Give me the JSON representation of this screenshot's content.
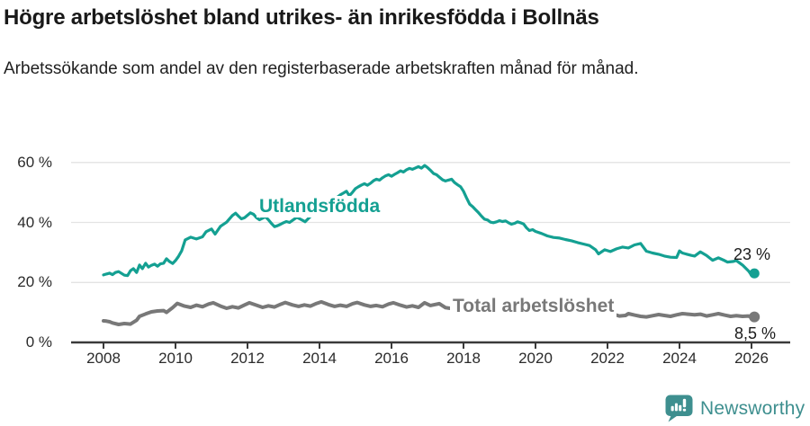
{
  "header": {
    "title": "Högre arbetslöshet bland utrikes- än inrikesfödda i Bollnäs",
    "subtitle": "Arbetssökande som andel av den registerbaserade arbetskraften månad för månad."
  },
  "footer": {
    "brand": "Newsworthy",
    "brand_color": "#3e8f8f",
    "logo_icon": "newsworthy-speech-bubble-bar-chart-icon"
  },
  "chart_data": {
    "type": "line",
    "title": "Högre arbetslöshet bland utrikes- än inrikesfödda i Bollnäs",
    "subtitle": "Arbetssökande som andel av den registerbaserade arbetskraften månad för månad.",
    "xlabel": "",
    "ylabel": "",
    "grid": "horizontal",
    "legend_position": "inline-labels",
    "x_axis": {
      "ticks": [
        2008,
        2010,
        2012,
        2014,
        2016,
        2018,
        2020,
        2022,
        2024,
        2026
      ],
      "range": [
        2007.1,
        2027.2
      ]
    },
    "y_axis": {
      "tick_labels": [
        "0 %",
        "20 %",
        "40 %",
        "60 %"
      ],
      "tick_values": [
        0,
        20,
        40,
        60
      ],
      "range": [
        0,
        66
      ],
      "unit": "%"
    },
    "axis_color": "#3a3a3a",
    "gridline_color": "#e3e3e3",
    "series": [
      {
        "name": "Utlandsfödda",
        "color": "#14a092",
        "end_label": "23 %",
        "end_value": 23,
        "points": [
          [
            2008.0,
            22.5
          ],
          [
            2008.08,
            22.8
          ],
          [
            2008.17,
            23.1
          ],
          [
            2008.25,
            22.6
          ],
          [
            2008.33,
            23.3
          ],
          [
            2008.42,
            23.6
          ],
          [
            2008.5,
            23.0
          ],
          [
            2008.58,
            22.4
          ],
          [
            2008.67,
            22.3
          ],
          [
            2008.75,
            23.9
          ],
          [
            2008.83,
            24.6
          ],
          [
            2008.92,
            23.3
          ],
          [
            2009.0,
            25.8
          ],
          [
            2009.08,
            24.6
          ],
          [
            2009.17,
            26.4
          ],
          [
            2009.25,
            25.1
          ],
          [
            2009.33,
            25.7
          ],
          [
            2009.42,
            26.1
          ],
          [
            2009.5,
            25.4
          ],
          [
            2009.58,
            26.2
          ],
          [
            2009.67,
            26.4
          ],
          [
            2009.75,
            27.9
          ],
          [
            2009.83,
            27.0
          ],
          [
            2009.92,
            26.3
          ],
          [
            2010.0,
            27.3
          ],
          [
            2010.08,
            28.6
          ],
          [
            2010.17,
            30.5
          ],
          [
            2010.27,
            34.2
          ],
          [
            2010.42,
            35.1
          ],
          [
            2010.58,
            34.5
          ],
          [
            2010.75,
            35.2
          ],
          [
            2010.85,
            36.9
          ],
          [
            2011.0,
            37.8
          ],
          [
            2011.1,
            36.1
          ],
          [
            2011.25,
            38.7
          ],
          [
            2011.42,
            40.1
          ],
          [
            2011.58,
            42.3
          ],
          [
            2011.67,
            43.1
          ],
          [
            2011.75,
            42.1
          ],
          [
            2011.83,
            41.2
          ],
          [
            2011.92,
            41.6
          ],
          [
            2012.0,
            42.4
          ],
          [
            2012.08,
            43.2
          ],
          [
            2012.17,
            42.7
          ],
          [
            2012.25,
            41.6
          ],
          [
            2012.33,
            40.9
          ],
          [
            2012.42,
            41.4
          ],
          [
            2012.5,
            41.9
          ],
          [
            2012.58,
            40.9
          ],
          [
            2012.67,
            39.6
          ],
          [
            2012.75,
            38.6
          ],
          [
            2012.83,
            38.9
          ],
          [
            2012.92,
            39.4
          ],
          [
            2013.0,
            39.9
          ],
          [
            2013.08,
            40.3
          ],
          [
            2013.17,
            40.0
          ],
          [
            2013.25,
            40.7
          ],
          [
            2013.37,
            41.7
          ],
          [
            2013.5,
            40.9
          ],
          [
            2013.6,
            40.2
          ],
          [
            2013.75,
            42.0
          ],
          [
            2013.92,
            43.6
          ],
          [
            2014.08,
            45.1
          ],
          [
            2014.25,
            46.4
          ],
          [
            2014.42,
            47.7
          ],
          [
            2014.58,
            49.2
          ],
          [
            2014.75,
            50.4
          ],
          [
            2014.83,
            48.9
          ],
          [
            2014.92,
            50.1
          ],
          [
            2015.0,
            51.3
          ],
          [
            2015.08,
            51.9
          ],
          [
            2015.17,
            52.5
          ],
          [
            2015.25,
            52.9
          ],
          [
            2015.33,
            52.4
          ],
          [
            2015.42,
            53.1
          ],
          [
            2015.5,
            53.9
          ],
          [
            2015.58,
            54.4
          ],
          [
            2015.67,
            54.1
          ],
          [
            2015.75,
            54.9
          ],
          [
            2015.83,
            55.5
          ],
          [
            2015.92,
            55.9
          ],
          [
            2016.0,
            55.4
          ],
          [
            2016.08,
            56.0
          ],
          [
            2016.17,
            56.6
          ],
          [
            2016.25,
            57.2
          ],
          [
            2016.33,
            56.8
          ],
          [
            2016.42,
            57.6
          ],
          [
            2016.5,
            58.0
          ],
          [
            2016.58,
            57.7
          ],
          [
            2016.67,
            58.2
          ],
          [
            2016.75,
            58.6
          ],
          [
            2016.83,
            58.1
          ],
          [
            2016.92,
            59.0
          ],
          [
            2017.0,
            58.3
          ],
          [
            2017.08,
            57.4
          ],
          [
            2017.17,
            56.3
          ],
          [
            2017.25,
            55.9
          ],
          [
            2017.33,
            55.1
          ],
          [
            2017.42,
            54.2
          ],
          [
            2017.5,
            53.8
          ],
          [
            2017.58,
            54.1
          ],
          [
            2017.67,
            54.4
          ],
          [
            2017.75,
            53.3
          ],
          [
            2017.83,
            52.6
          ],
          [
            2017.92,
            51.9
          ],
          [
            2018.0,
            50.4
          ],
          [
            2018.08,
            48.3
          ],
          [
            2018.17,
            46.1
          ],
          [
            2018.25,
            45.3
          ],
          [
            2018.33,
            44.3
          ],
          [
            2018.42,
            43.2
          ],
          [
            2018.5,
            42.1
          ],
          [
            2018.58,
            41.1
          ],
          [
            2018.67,
            40.8
          ],
          [
            2018.75,
            40.1
          ],
          [
            2018.83,
            39.9
          ],
          [
            2018.92,
            40.2
          ],
          [
            2019.0,
            40.6
          ],
          [
            2019.08,
            40.3
          ],
          [
            2019.17,
            40.5
          ],
          [
            2019.25,
            39.9
          ],
          [
            2019.33,
            39.4
          ],
          [
            2019.42,
            39.7
          ],
          [
            2019.5,
            40.2
          ],
          [
            2019.58,
            39.9
          ],
          [
            2019.67,
            39.5
          ],
          [
            2019.75,
            38.2
          ],
          [
            2019.83,
            37.3
          ],
          [
            2019.92,
            37.6
          ],
          [
            2020.0,
            37.0
          ],
          [
            2020.17,
            36.3
          ],
          [
            2020.33,
            35.5
          ],
          [
            2020.5,
            35.0
          ],
          [
            2020.67,
            34.8
          ],
          [
            2020.83,
            34.3
          ],
          [
            2021.0,
            33.9
          ],
          [
            2021.17,
            33.3
          ],
          [
            2021.33,
            32.8
          ],
          [
            2021.5,
            32.3
          ],
          [
            2021.67,
            30.9
          ],
          [
            2021.75,
            29.5
          ],
          [
            2021.92,
            30.9
          ],
          [
            2022.08,
            30.3
          ],
          [
            2022.25,
            31.2
          ],
          [
            2022.42,
            31.8
          ],
          [
            2022.58,
            31.5
          ],
          [
            2022.75,
            32.5
          ],
          [
            2022.92,
            33.0
          ],
          [
            2023.08,
            30.4
          ],
          [
            2023.25,
            29.8
          ],
          [
            2023.42,
            29.4
          ],
          [
            2023.58,
            28.8
          ],
          [
            2023.75,
            28.4
          ],
          [
            2023.92,
            28.3
          ],
          [
            2024.0,
            30.5
          ],
          [
            2024.08,
            29.8
          ],
          [
            2024.17,
            29.5
          ],
          [
            2024.33,
            29.0
          ],
          [
            2024.42,
            28.8
          ],
          [
            2024.58,
            30.2
          ],
          [
            2024.75,
            29.0
          ],
          [
            2024.92,
            27.4
          ],
          [
            2025.08,
            28.2
          ],
          [
            2025.25,
            27.3
          ],
          [
            2025.33,
            26.8
          ],
          [
            2025.5,
            27.0
          ],
          [
            2025.58,
            27.3
          ],
          [
            2025.75,
            25.8
          ],
          [
            2025.92,
            23.8
          ],
          [
            2026.0,
            22.4
          ],
          [
            2026.08,
            23.0
          ]
        ]
      },
      {
        "name": "Total arbetslöshet",
        "color": "#787878",
        "end_label": "8,5 %",
        "end_value": 8.5,
        "points": [
          [
            2008.0,
            7.2
          ],
          [
            2008.08,
            7.1
          ],
          [
            2008.17,
            6.9
          ],
          [
            2008.25,
            6.5
          ],
          [
            2008.42,
            6.0
          ],
          [
            2008.58,
            6.3
          ],
          [
            2008.75,
            6.1
          ],
          [
            2008.92,
            7.4
          ],
          [
            2009.0,
            8.7
          ],
          [
            2009.17,
            9.5
          ],
          [
            2009.33,
            10.2
          ],
          [
            2009.5,
            10.5
          ],
          [
            2009.67,
            10.6
          ],
          [
            2009.75,
            10.0
          ],
          [
            2009.92,
            11.6
          ],
          [
            2010.05,
            13.0
          ],
          [
            2010.25,
            12.1
          ],
          [
            2010.42,
            11.7
          ],
          [
            2010.58,
            12.4
          ],
          [
            2010.75,
            11.9
          ],
          [
            2010.92,
            12.8
          ],
          [
            2011.05,
            13.2
          ],
          [
            2011.25,
            12.1
          ],
          [
            2011.42,
            11.4
          ],
          [
            2011.58,
            11.9
          ],
          [
            2011.75,
            11.5
          ],
          [
            2011.92,
            12.5
          ],
          [
            2012.05,
            13.2
          ],
          [
            2012.25,
            12.4
          ],
          [
            2012.42,
            11.7
          ],
          [
            2012.58,
            12.2
          ],
          [
            2012.75,
            11.8
          ],
          [
            2012.92,
            12.7
          ],
          [
            2013.05,
            13.3
          ],
          [
            2013.25,
            12.5
          ],
          [
            2013.42,
            12.0
          ],
          [
            2013.58,
            12.5
          ],
          [
            2013.75,
            12.1
          ],
          [
            2013.92,
            13.0
          ],
          [
            2014.05,
            13.5
          ],
          [
            2014.25,
            12.6
          ],
          [
            2014.42,
            12.0
          ],
          [
            2014.58,
            12.4
          ],
          [
            2014.75,
            12.0
          ],
          [
            2014.92,
            12.9
          ],
          [
            2015.05,
            13.3
          ],
          [
            2015.25,
            12.5
          ],
          [
            2015.42,
            12.0
          ],
          [
            2015.58,
            12.3
          ],
          [
            2015.75,
            11.9
          ],
          [
            2015.92,
            12.8
          ],
          [
            2016.05,
            13.2
          ],
          [
            2016.25,
            12.4
          ],
          [
            2016.42,
            11.8
          ],
          [
            2016.58,
            12.2
          ],
          [
            2016.75,
            11.7
          ],
          [
            2016.92,
            13.2
          ],
          [
            2017.08,
            12.3
          ],
          [
            2017.2,
            12.6
          ],
          [
            2017.33,
            12.9
          ],
          [
            2017.5,
            11.6
          ],
          [
            2017.62,
            11.4
          ],
          [
            2017.75,
            11.8
          ],
          [
            2017.92,
            12.3
          ],
          [
            2018.08,
            12.0
          ],
          [
            2018.25,
            11.4
          ],
          [
            2018.5,
            10.9
          ],
          [
            2018.75,
            10.6
          ],
          [
            2019.0,
            11.0
          ],
          [
            2019.25,
            10.4
          ],
          [
            2019.5,
            10.0
          ],
          [
            2019.75,
            10.3
          ],
          [
            2020.0,
            10.9
          ],
          [
            2020.25,
            12.6
          ],
          [
            2020.42,
            13.1
          ],
          [
            2020.58,
            12.8
          ],
          [
            2020.75,
            12.4
          ],
          [
            2021.0,
            12.1
          ],
          [
            2021.25,
            11.6
          ],
          [
            2021.5,
            11.0
          ],
          [
            2021.75,
            10.4
          ],
          [
            2022.0,
            9.9
          ],
          [
            2022.17,
            9.4
          ],
          [
            2022.33,
            8.8
          ],
          [
            2022.5,
            9.0
          ],
          [
            2022.58,
            9.6
          ],
          [
            2022.75,
            9.1
          ],
          [
            2022.92,
            8.7
          ],
          [
            2023.08,
            8.5
          ],
          [
            2023.25,
            8.9
          ],
          [
            2023.42,
            9.3
          ],
          [
            2023.58,
            9.0
          ],
          [
            2023.75,
            8.7
          ],
          [
            2023.92,
            9.2
          ],
          [
            2024.08,
            9.6
          ],
          [
            2024.25,
            9.4
          ],
          [
            2024.42,
            9.2
          ],
          [
            2024.58,
            9.4
          ],
          [
            2024.75,
            8.8
          ],
          [
            2024.92,
            9.2
          ],
          [
            2025.08,
            9.6
          ],
          [
            2025.25,
            9.1
          ],
          [
            2025.42,
            8.7
          ],
          [
            2025.58,
            8.9
          ],
          [
            2025.75,
            8.7
          ],
          [
            2025.92,
            8.8
          ],
          [
            2026.0,
            8.3
          ],
          [
            2026.08,
            8.5
          ]
        ]
      }
    ]
  }
}
